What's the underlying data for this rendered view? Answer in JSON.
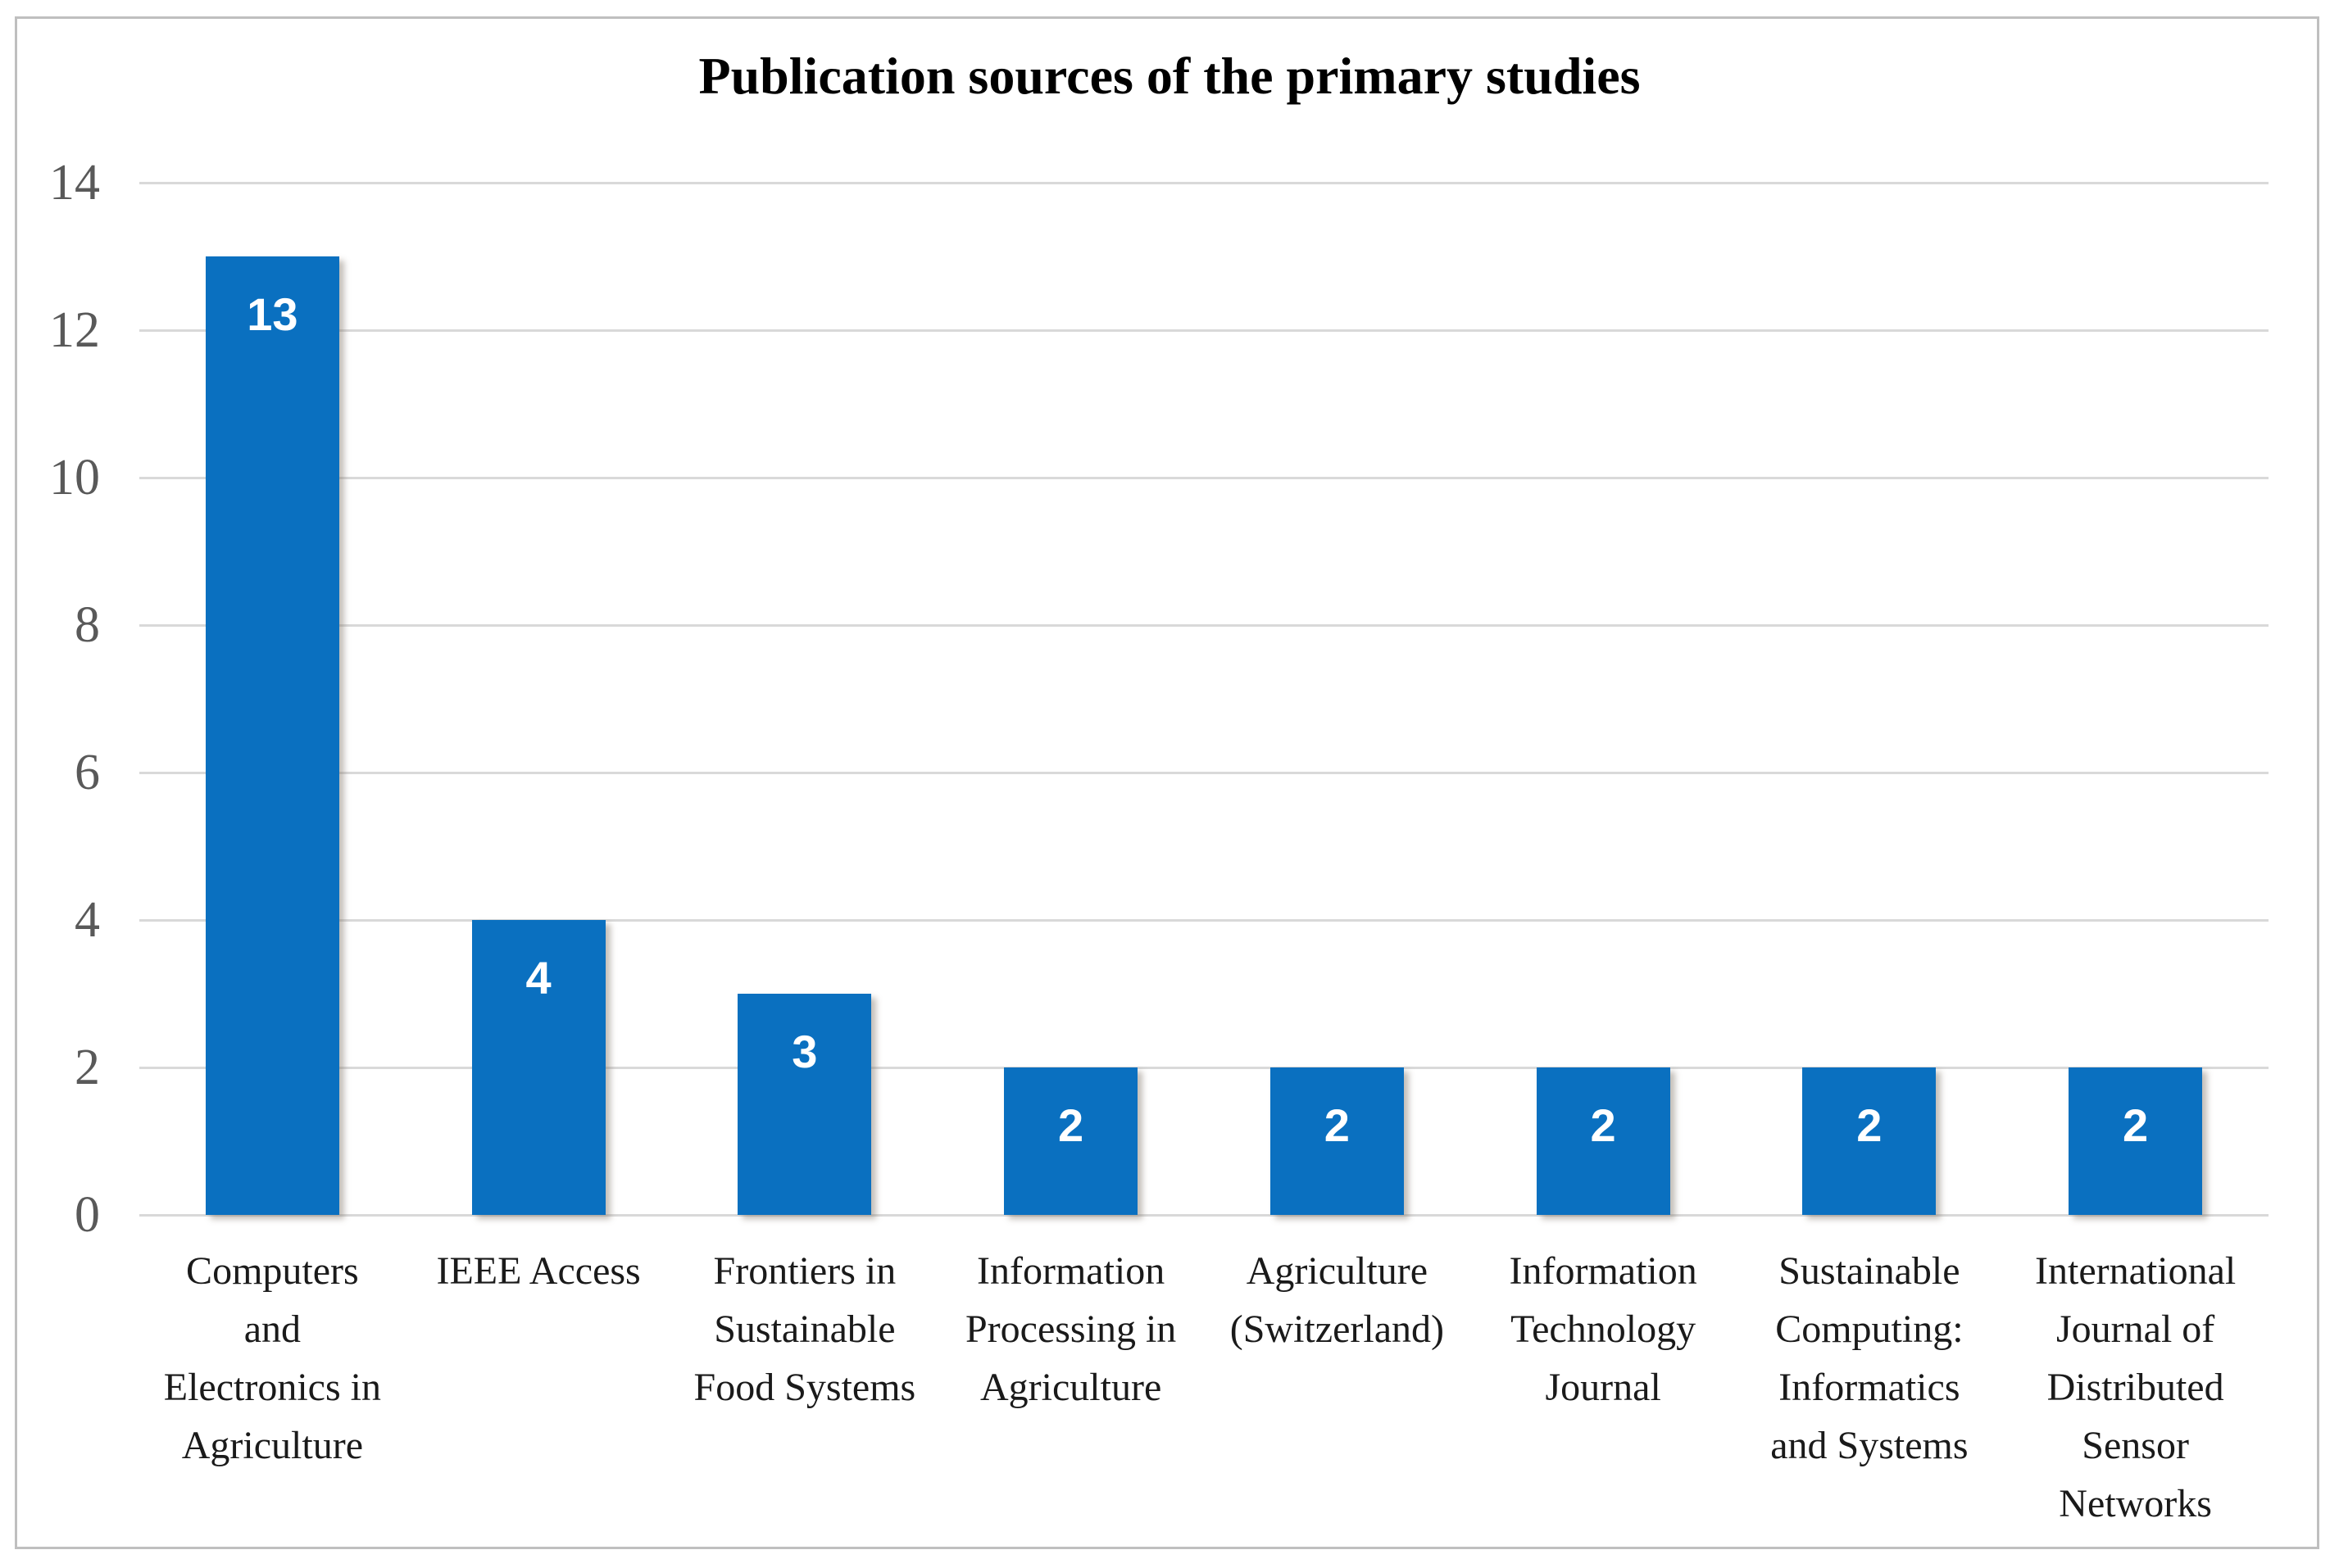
{
  "figure": {
    "title": "Publication sources of the primary studies"
  },
  "colors": {
    "bar": "#0a70c0",
    "gridline": "#d9d9d9",
    "frame_border": "#bfbfbf",
    "y_tick_text": "#595959",
    "category_text": "#1a1a1a",
    "title_text": "#000000",
    "data_label_text": "#ffffff"
  },
  "chart_data": {
    "type": "bar",
    "title": "Publication sources of the primary studies",
    "categories": [
      "Computers and Electronics in Agriculture",
      "IEEE Access",
      "Frontiers in Sustainable Food Systems",
      "Information Processing in Agriculture",
      "Agriculture (Switzerland)",
      "Information Technology Journal",
      "Sustainable Computing: Informatics and Systems",
      "International Journal of Distributed Sensor Networks"
    ],
    "category_tick_labels": [
      "Computers\nand\nElectronics in\nAgriculture",
      "IEEE Access",
      "Frontiers in\nSustainable\nFood Systems",
      "Information\nProcessing in\nAgriculture",
      "Agriculture\n(Switzerland)",
      "Information\nTechnology\nJournal",
      "Sustainable\nComputing:\nInformatics\nand Systems",
      "International\nJournal of\nDistributed\nSensor\nNetworks"
    ],
    "values": [
      13,
      4,
      3,
      2,
      2,
      2,
      2,
      2
    ],
    "data_labels": [
      "13",
      "4",
      "3",
      "2",
      "2",
      "2",
      "2",
      "2"
    ],
    "xlabel": "",
    "ylabel": "",
    "ylim": [
      0,
      14
    ],
    "yticks": [
      0,
      2,
      4,
      6,
      8,
      10,
      12,
      14
    ],
    "grid": "horizontal",
    "legend": "none"
  }
}
